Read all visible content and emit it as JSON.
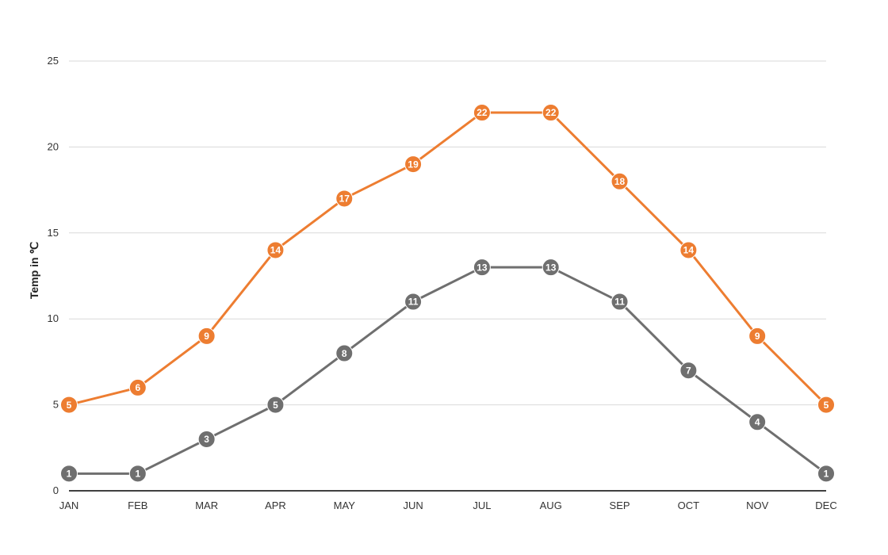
{
  "chart_data": {
    "type": "line",
    "title": "",
    "xlabel": "",
    "ylabel": "Temp in ℃",
    "categories": [
      "JAN",
      "FEB",
      "MAR",
      "APR",
      "MAY",
      "JUN",
      "JUL",
      "AUG",
      "SEP",
      "OCT",
      "NOV",
      "DEC"
    ],
    "ylim": [
      0,
      25
    ],
    "yticks": [
      0,
      5,
      10,
      15,
      20,
      25
    ],
    "grid": true,
    "legend": "none",
    "series": [
      {
        "values": [
          5,
          6,
          9,
          14,
          17,
          19,
          22,
          22,
          18,
          14,
          9,
          5
        ],
        "color": "#ED7D31"
      },
      {
        "values": [
          1,
          1,
          3,
          5,
          8,
          11,
          13,
          13,
          11,
          7,
          4,
          1
        ],
        "color": "#6F6F6F"
      }
    ],
    "colors": {
      "gridline": "#d9d9d9",
      "baseline": "#000000",
      "label_text": "#ffffff"
    }
  }
}
